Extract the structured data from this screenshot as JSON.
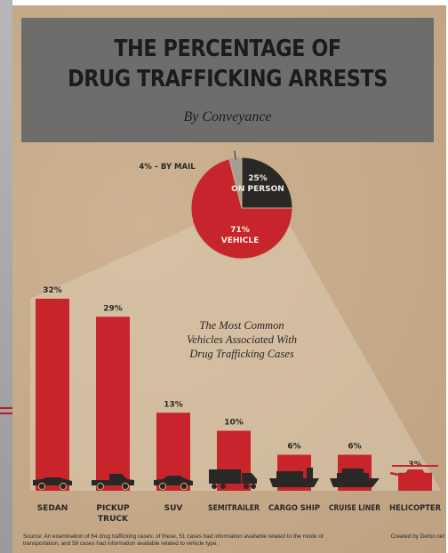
{
  "title_line1": "THE PERCENTAGE OF",
  "title_line2": "DRUG TRAFFICKING ARRESTS",
  "subtitle": "By Conveyance",
  "annotation_lines": [
    "The Most Common",
    "Vehicles Associated With",
    "Drug Trafficking Cases"
  ],
  "source": "Source: An examination of 64 drug trafficking cases; of these, 51 cases had information available related to the mode of transportation, and 58 cases had information available related to vehicle type.",
  "credit": "Created by Detox.net",
  "colors": {
    "red": "#c8242b",
    "dark": "#2a2826",
    "gray": "#a59d93",
    "background": "#c8aa87",
    "header": "#6f6d6b"
  },
  "chart_data": [
    {
      "type": "pie",
      "slices": [
        {
          "label": "ON PERSON",
          "value": 25,
          "display": "25%",
          "color": "#2a2826"
        },
        {
          "label": "VEHICLE",
          "value": 71,
          "display": "71%",
          "color": "#c8242b"
        },
        {
          "label": "BY MAIL",
          "value": 4,
          "display": "4% – BY MAIL",
          "color": "#a59d93"
        }
      ]
    },
    {
      "type": "bar",
      "categories": [
        "SEDAN",
        "PICKUP TRUCK",
        "SUV",
        "SEMITRAILER",
        "CARGO SHIP",
        "CRUISE LINER",
        "HELICOPTER"
      ],
      "values": [
        32,
        29,
        13,
        10,
        6,
        6,
        3
      ],
      "value_labels": [
        "32%",
        "29%",
        "13%",
        "10%",
        "6%",
        "6%",
        "3%"
      ],
      "icons": [
        "sedan-icon",
        "pickup-truck-icon",
        "suv-icon",
        "semitrailer-icon",
        "cargo-ship-icon",
        "cruise-liner-icon",
        "helicopter-icon"
      ]
    }
  ]
}
